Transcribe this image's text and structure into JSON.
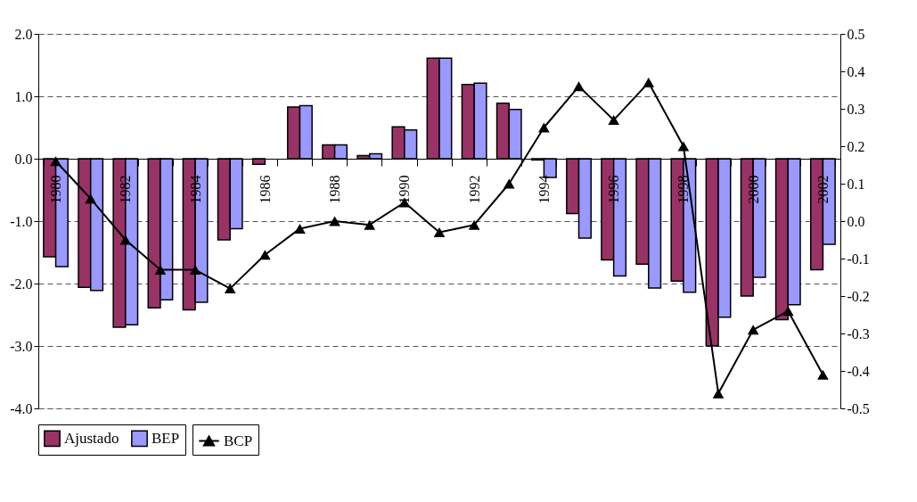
{
  "chart_data": {
    "type": "bar",
    "categories": [
      "1980",
      null,
      "1982",
      null,
      "1984",
      null,
      "1986",
      null,
      "1988",
      null,
      "1990",
      null,
      "1992",
      null,
      "1994",
      null,
      "1996",
      null,
      "1998",
      null,
      "2000",
      null,
      "2002"
    ],
    "series": [
      {
        "name": "Ajustado",
        "color": "#993366",
        "values": [
          -1.57,
          -2.06,
          -2.7,
          -2.39,
          -2.42,
          -1.3,
          -0.09,
          0.83,
          0.22,
          0.05,
          0.51,
          1.61,
          1.19,
          0.89,
          -0.02,
          -0.88,
          -1.62,
          -1.69,
          -1.96,
          -3.0,
          -2.2,
          -2.58,
          -1.78
        ]
      },
      {
        "name": "BEP",
        "color": "#9999ff",
        "values": [
          -1.73,
          -2.11,
          -2.66,
          -2.26,
          -2.3,
          -1.12,
          null,
          0.85,
          0.22,
          0.08,
          0.46,
          1.61,
          1.21,
          0.79,
          -0.3,
          -1.27,
          -1.88,
          -2.07,
          -2.14,
          -2.54,
          -1.9,
          -2.34,
          -1.37
        ]
      },
      {
        "name": "BCP",
        "type": "line",
        "axis": "y2",
        "color": "#000000",
        "marker": "triangle",
        "values": [
          0.16,
          0.06,
          -0.05,
          -0.13,
          -0.13,
          -0.18,
          -0.09,
          -0.02,
          0.0,
          -0.01,
          0.05,
          -0.03,
          -0.01,
          0.1,
          0.25,
          0.36,
          0.27,
          0.37,
          0.2,
          -0.46,
          -0.29,
          -0.24,
          -0.41
        ]
      }
    ],
    "ylim": [
      -4,
      2
    ],
    "yticks": [
      {
        "value": -4,
        "label": "-4.0"
      },
      {
        "value": -3,
        "label": "-3.0"
      },
      {
        "value": -2,
        "label": "-2.0"
      },
      {
        "value": -1,
        "label": "-1.0"
      },
      {
        "value": 0,
        "label": "0.0"
      },
      {
        "value": 1,
        "label": "1.0"
      },
      {
        "value": 2,
        "label": "2.0"
      }
    ],
    "y2lim": [
      -0.5,
      0.5
    ],
    "y2ticks": [
      {
        "value": -0.5,
        "label": "-0.5"
      },
      {
        "value": -0.4,
        "label": "-0.4"
      },
      {
        "value": -0.3,
        "label": "-0.3"
      },
      {
        "value": -0.2,
        "label": "-0.2"
      },
      {
        "value": -0.1,
        "label": "-0.1"
      },
      {
        "value": 0.0,
        "label": "0.0"
      },
      {
        "value": 0.1,
        "label": "0.1"
      },
      {
        "value": 0.2,
        "label": "0.2"
      },
      {
        "value": 0.3,
        "label": "0.3"
      },
      {
        "value": 0.4,
        "label": "0.4"
      },
      {
        "value": 0.5,
        "label": "0.5"
      }
    ],
    "grid": "y",
    "legend": "bottom"
  }
}
